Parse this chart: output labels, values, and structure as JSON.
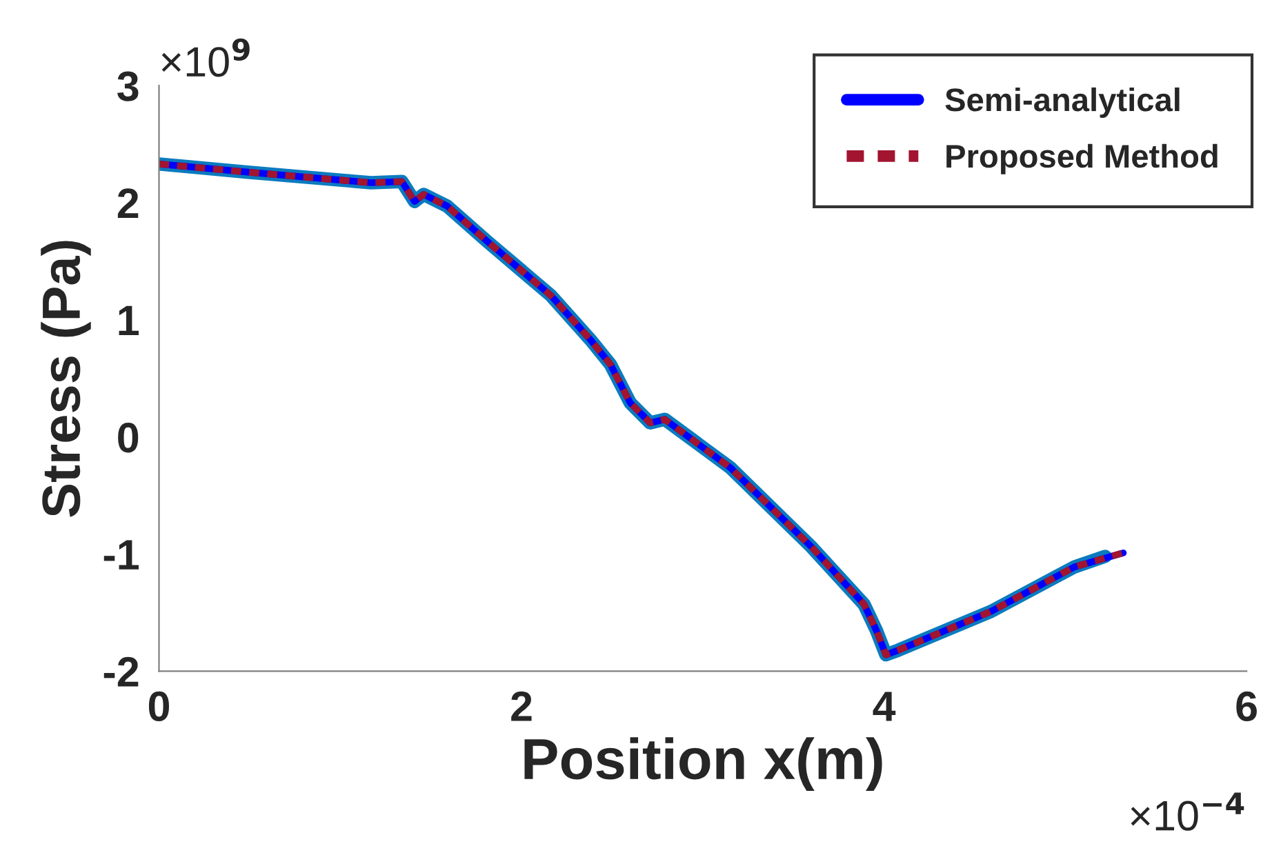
{
  "chart_data": {
    "type": "line",
    "xlabel": "Position x(m)",
    "ylabel": "Stress (Pa)",
    "xlim": [
      0,
      6
    ],
    "ylim": [
      -2,
      3
    ],
    "xticks": [
      0,
      2,
      4,
      6
    ],
    "yticks": [
      -2,
      -1,
      0,
      1,
      2,
      3
    ],
    "annotations": [
      "×10$^{9}$",
      "×10$^{−4}$"
    ],
    "legend": "top right",
    "grid": false,
    "series": [
      {
        "color": "#0b7bbf",
        "line_style": "solid",
        "x": [
          0,
          0.49,
          1.02,
          1.17,
          1.34,
          1.41,
          1.46,
          1.59,
          1.81,
          2.16,
          2.38,
          2.49,
          2.6,
          2.71,
          2.79,
          3.15,
          3.6,
          3.89,
          3.96,
          4.01,
          4.08,
          4.59,
          5.05,
          5.22
        ],
        "values": [
          2.33,
          2.26,
          2.19,
          2.17,
          2.18,
          2.01,
          2.07,
          1.97,
          1.67,
          1.21,
          0.83,
          0.62,
          0.29,
          0.12,
          0.15,
          -0.26,
          -0.94,
          -1.43,
          -1.66,
          -1.86,
          -1.82,
          -1.49,
          -1.11,
          -1.02
        ]
      },
      {
        "name": "Semi-analytical",
        "color": "#0000ff",
        "line_style": "solid",
        "x": [
          0,
          0.49,
          1.02,
          1.17,
          1.34,
          1.41,
          1.46,
          1.59,
          1.81,
          2.16,
          2.38,
          2.49,
          2.6,
          2.71,
          2.79,
          3.15,
          3.6,
          3.89,
          3.96,
          4.01,
          4.08,
          4.59,
          5.05,
          5.32
        ],
        "values": [
          2.33,
          2.26,
          2.19,
          2.17,
          2.18,
          2.01,
          2.07,
          1.97,
          1.67,
          1.21,
          0.83,
          0.62,
          0.29,
          0.12,
          0.15,
          -0.26,
          -0.94,
          -1.43,
          -1.66,
          -1.86,
          -1.82,
          -1.49,
          -1.11,
          -0.99
        ]
      },
      {
        "name": "Proposed Method",
        "color": "#a2142f",
        "line_style": "dashed",
        "x": [
          0,
          0.49,
          1.02,
          1.17,
          1.34,
          1.41,
          1.46,
          1.59,
          1.81,
          2.16,
          2.38,
          2.49,
          2.6,
          2.71,
          2.79,
          3.15,
          3.6,
          3.89,
          3.96,
          4.01,
          4.08,
          4.59,
          5.05,
          5.32
        ],
        "values": [
          2.33,
          2.26,
          2.19,
          2.17,
          2.18,
          2.01,
          2.07,
          1.97,
          1.67,
          1.21,
          0.83,
          0.62,
          0.29,
          0.12,
          0.15,
          -0.26,
          -0.94,
          -1.43,
          -1.66,
          -1.86,
          -1.82,
          -1.49,
          -1.11,
          -0.99
        ]
      }
    ]
  }
}
